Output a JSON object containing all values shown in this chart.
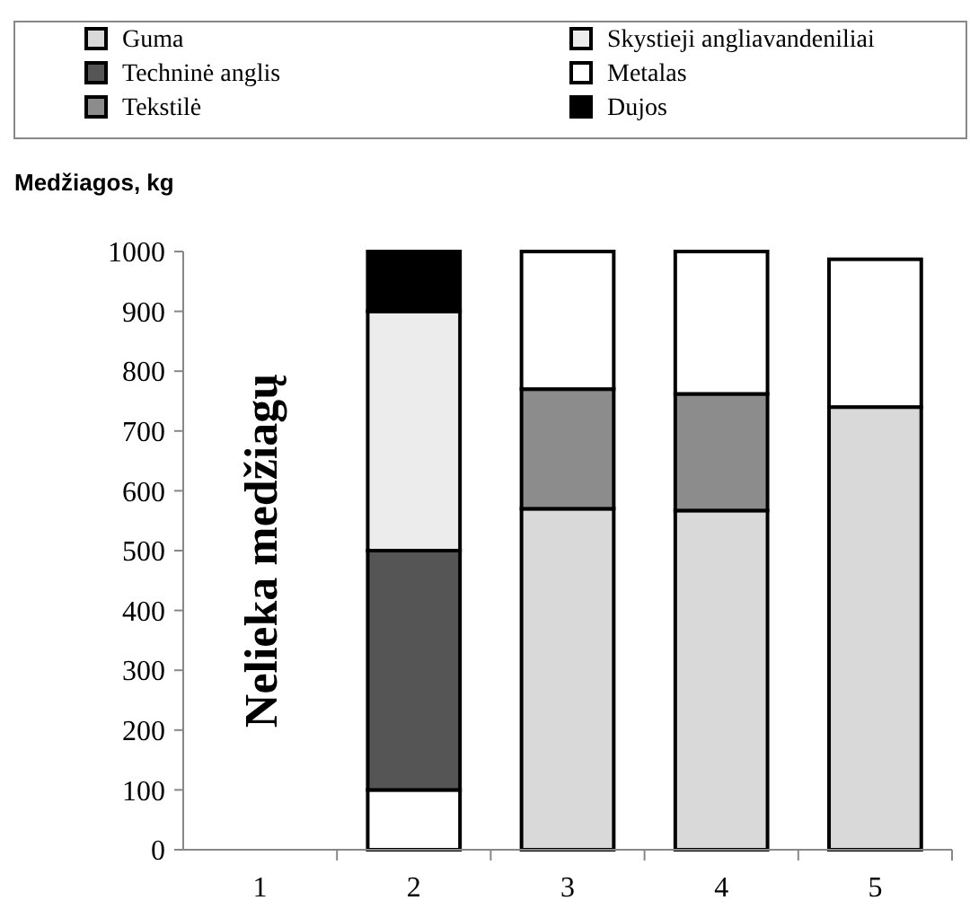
{
  "chart_data": {
    "type": "bar",
    "stacked": true,
    "ylabel": "Medžiagos, kg",
    "categories": [
      "1",
      "2",
      "3",
      "4",
      "5"
    ],
    "series": [
      {
        "color": "#ffffff",
        "values": [
          null,
          100,
          null,
          null,
          null
        ]
      },
      {
        "name": "Guma",
        "color": "#d9d9d9",
        "values": [
          null,
          null,
          570,
          567,
          740
        ]
      },
      {
        "name": "Techninė anglis",
        "color": "#555555",
        "values": [
          null,
          400,
          null,
          null,
          null
        ]
      },
      {
        "name": "Tekstilė",
        "color": "#8c8c8c",
        "values": [
          null,
          null,
          200,
          195,
          null
        ]
      },
      {
        "name": "Skystieji angliavandeniliai",
        "color": "#ececec",
        "values": [
          null,
          400,
          null,
          null,
          null
        ]
      },
      {
        "name": "Metalas",
        "color": "#ffffff",
        "values": [
          null,
          null,
          230,
          238,
          247
        ]
      },
      {
        "name": "Dujos",
        "color": "#000000",
        "values": [
          null,
          100,
          null,
          null,
          null
        ]
      }
    ],
    "ylim": [
      0,
      1000
    ],
    "yticks": [
      0,
      100,
      200,
      300,
      400,
      500,
      600,
      700,
      800,
      900,
      1000
    ],
    "grid": false,
    "legend": "top",
    "annotations": [
      "Nelieka medžiagų"
    ]
  }
}
